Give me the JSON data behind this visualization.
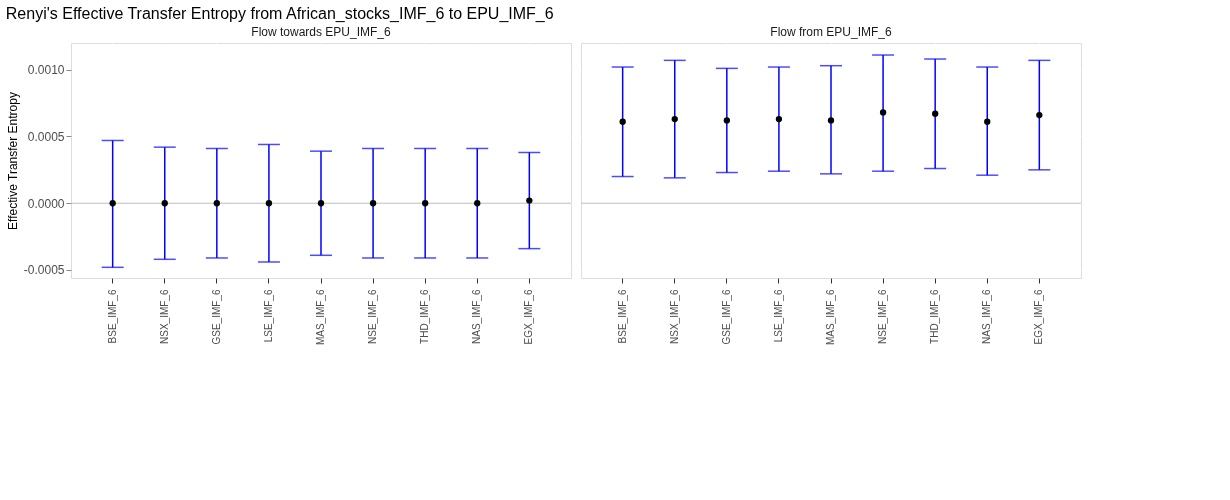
{
  "chart_data": [
    {
      "type": "scatter",
      "title": "Renyi's Effective Transfer Entropy from African_stocks_IMF_6 to EPU_IMF_6",
      "subtitle": "Flow towards EPU_IMF_6",
      "ylabel": "Effective Transfer Entropy",
      "categories": [
        "BSE_IMF_6",
        "NSX_IMF_6",
        "GSE_IMF_6",
        "LSE_IMF_6",
        "MAS_IMF_6",
        "NSE_IMF_6",
        "THD_IMF_6",
        "NAS_IMF_6",
        "EGX_IMF_6"
      ],
      "series": [
        {
          "color": "#000000",
          "values": [
            0,
            0,
            0,
            0,
            0,
            0,
            0,
            0,
            2e-05
          ],
          "errors": [
            [
              -0.00048,
              0.00047
            ],
            [
              -0.00042,
              0.00042
            ],
            [
              -0.00041,
              0.00041
            ],
            [
              -0.00044,
              0.00044
            ],
            [
              -0.00039,
              0.00039
            ],
            [
              -0.00041,
              0.00041
            ],
            [
              -0.00041,
              0.00041
            ],
            [
              -0.00041,
              0.00041
            ],
            [
              -0.00034,
              0.00038
            ]
          ]
        }
      ],
      "ylim": [
        -0.00056,
        0.0012
      ],
      "yticks": [
        {
          "value": -0.0005,
          "label": "-0.0005"
        },
        {
          "value": 0,
          "label": "0.0000"
        },
        {
          "value": 0.0005,
          "label": "0.0005"
        },
        {
          "value": 0.001,
          "label": "0.0010"
        }
      ],
      "ref_lines": [
        {
          "axis": "y",
          "value": 0,
          "color": "#bdbdbd"
        }
      ],
      "grid": true,
      "marker": "circle"
    },
    {
      "type": "scatter",
      "subtitle": "Flow from EPU_IMF_6",
      "categories": [
        "BSE_IMF_6",
        "NSX_IMF_6",
        "GSE_IMF_6",
        "LSE_IMF_6",
        "MAS_IMF_6",
        "NSE_IMF_6",
        "THD_IMF_6",
        "NAS_IMF_6",
        "EGX_IMF_6"
      ],
      "series": [
        {
          "color": "#000000",
          "values": [
            0.00061,
            0.00063,
            0.00062,
            0.00063,
            0.00062,
            0.00068,
            0.00067,
            0.00061,
            0.00066
          ],
          "errors": [
            [
              0.0002,
              0.00102
            ],
            [
              0.00019,
              0.00107
            ],
            [
              0.00023,
              0.00101
            ],
            [
              0.00024,
              0.00102
            ],
            [
              0.00022,
              0.00103
            ],
            [
              0.00024,
              0.00111
            ],
            [
              0.00026,
              0.00108
            ],
            [
              0.00021,
              0.00102
            ],
            [
              0.00025,
              0.00107
            ]
          ]
        }
      ],
      "ylim": [
        -0.00056,
        0.0012
      ],
      "yticks": [
        {
          "value": -0.0005,
          "label": null
        },
        {
          "value": 0,
          "label": null
        },
        {
          "value": 0.0005,
          "label": null
        },
        {
          "value": 0.001,
          "label": null
        }
      ],
      "ref_lines": [
        {
          "axis": "y",
          "value": 0,
          "color": "#bdbdbd"
        }
      ],
      "grid": true,
      "marker": "circle",
      "tick_labels": "x"
    }
  ]
}
